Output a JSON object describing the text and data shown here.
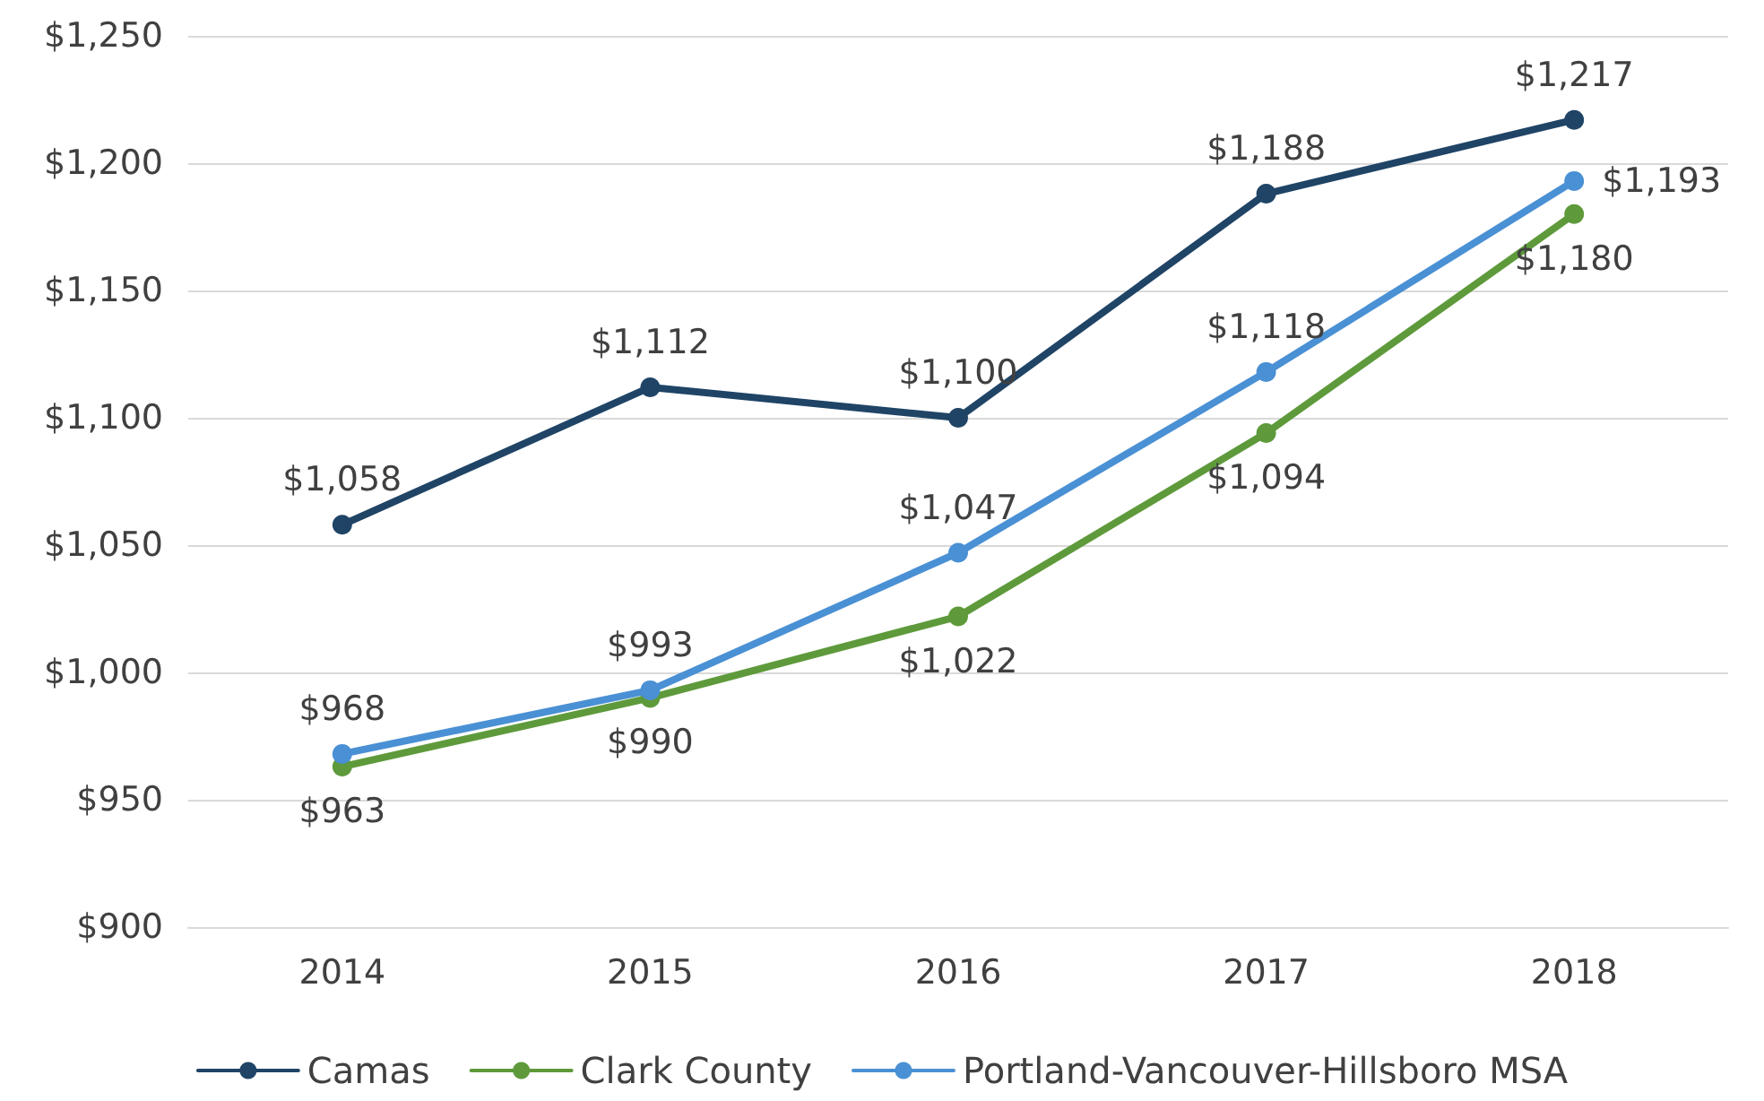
{
  "chart_data": {
    "type": "line",
    "categories": [
      "2014",
      "2015",
      "2016",
      "2017",
      "2018"
    ],
    "series": [
      {
        "name": "Camas",
        "color": "#1f4466",
        "values": [
          1058,
          1112,
          1100,
          1188,
          1217
        ],
        "value_labels": [
          "$1,058",
          "$1,112",
          "$1,100",
          "$1,188",
          "$1,217"
        ]
      },
      {
        "name": "Clark County",
        "color": "#5e9a3b",
        "values": [
          963,
          990,
          1022,
          1094,
          1180
        ],
        "value_labels": [
          "$963",
          "$990",
          "$1,022",
          "$1,094",
          "$1,180"
        ]
      },
      {
        "name": "Portland-Vancouver-Hillsboro MSA",
        "color": "#4a90d4",
        "values": [
          968,
          993,
          1047,
          1118,
          1193
        ],
        "value_labels": [
          "$968",
          "$993",
          "$1,047",
          "$1,118",
          "$1,193"
        ]
      }
    ],
    "ylim": [
      900,
      1250
    ],
    "yticks": [
      {
        "value": 900,
        "label": "$900"
      },
      {
        "value": 950,
        "label": "$950"
      },
      {
        "value": 1000,
        "label": "$1,000"
      },
      {
        "value": 1050,
        "label": "$1,050"
      },
      {
        "value": 1100,
        "label": "$1,100"
      },
      {
        "value": 1150,
        "label": "$1,150"
      },
      {
        "value": 1200,
        "label": "$1,200"
      },
      {
        "value": 1250,
        "label": "$1,250"
      }
    ],
    "grid": "y",
    "legend": "bottom",
    "marker": "circle",
    "line_style": "solid"
  }
}
